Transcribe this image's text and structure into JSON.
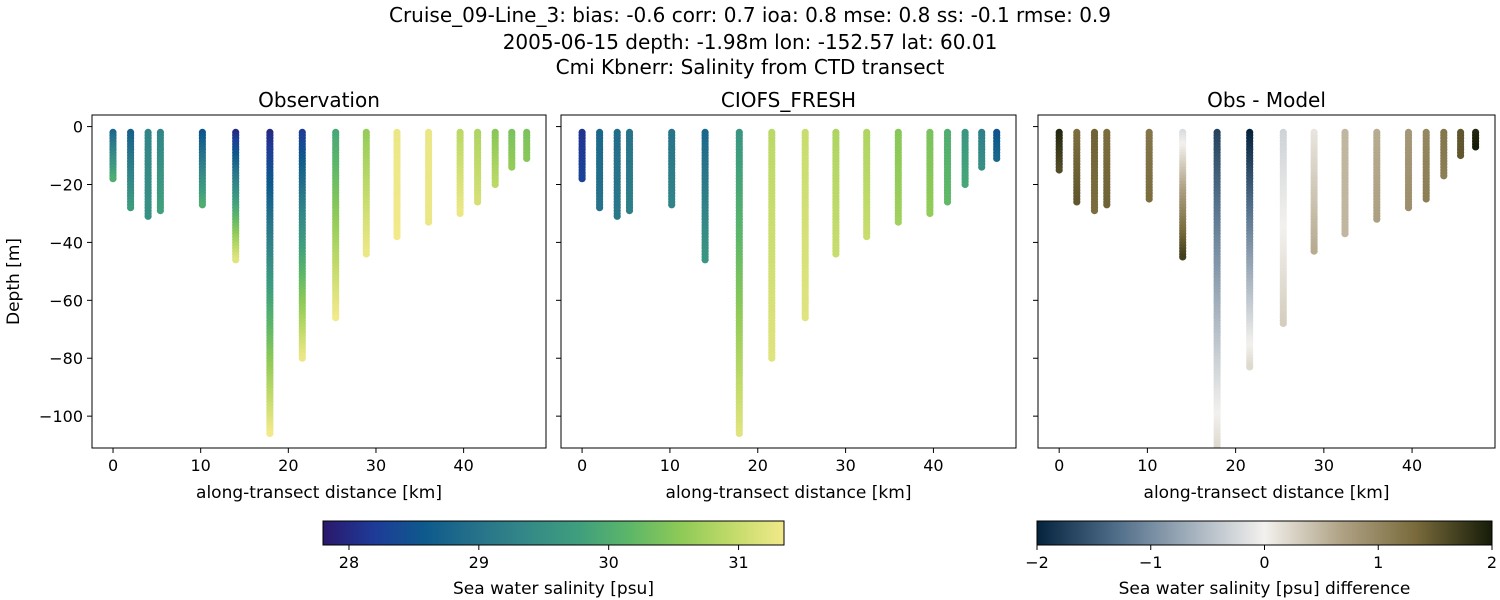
{
  "figure": {
    "title_lines": [
      "Cruise_09-Line_3: bias: -0.6  corr: 0.7  ioa: 0.8  mse: 0.8  ss: -0.1  rmse: 0.9",
      "2005-06-15 depth: -1.98m lon: -152.57 lat: 60.01",
      "Cmi Kbnerr: Salinity from CTD transect"
    ]
  },
  "chart_data": [
    {
      "type": "scatter",
      "title": "Observation",
      "xlabel": "along-transect distance [km]",
      "ylabel": "Depth [m]",
      "xlim": [
        -2.4,
        49.4
      ],
      "ylim": [
        -111,
        4
      ],
      "xticks": [
        0,
        10,
        20,
        30,
        40
      ],
      "yticks": [
        0,
        -20,
        -40,
        -60,
        -80,
        -100
      ],
      "colormap": "haline",
      "clim": [
        27.8,
        31.35
      ],
      "profiles": [
        {
          "x": 0.0,
          "bottom": -18,
          "top_value": 28.8,
          "bottom_value": 30.0
        },
        {
          "x": 2.0,
          "bottom": -28,
          "top_value": 28.7,
          "bottom_value": 29.7
        },
        {
          "x": 4.0,
          "bottom": -31,
          "top_value": 29.3,
          "bottom_value": 29.5
        },
        {
          "x": 5.4,
          "bottom": -29,
          "top_value": 29.3,
          "bottom_value": 29.8
        },
        {
          "x": 10.2,
          "bottom": -27,
          "top_value": 28.5,
          "bottom_value": 30.0
        },
        {
          "x": 14.0,
          "bottom": -46,
          "top_value": 28.0,
          "bottom_value": 31.2
        },
        {
          "x": 17.9,
          "bottom": -106,
          "top_value": 28.0,
          "bottom_value": 31.35
        },
        {
          "x": 21.6,
          "bottom": -80,
          "top_value": 28.2,
          "bottom_value": 31.3
        },
        {
          "x": 25.4,
          "bottom": -66,
          "top_value": 29.9,
          "bottom_value": 31.35
        },
        {
          "x": 28.9,
          "bottom": -44,
          "top_value": 30.6,
          "bottom_value": 31.3
        },
        {
          "x": 32.4,
          "bottom": -38,
          "top_value": 31.3,
          "bottom_value": 31.35
        },
        {
          "x": 36.0,
          "bottom": -33,
          "top_value": 31.3,
          "bottom_value": 31.3
        },
        {
          "x": 39.6,
          "bottom": -30,
          "top_value": 30.9,
          "bottom_value": 31.3
        },
        {
          "x": 41.6,
          "bottom": -26,
          "top_value": 30.8,
          "bottom_value": 31.1
        },
        {
          "x": 43.6,
          "bottom": -20,
          "top_value": 30.5,
          "bottom_value": 30.9
        },
        {
          "x": 45.5,
          "bottom": -14,
          "top_value": 30.4,
          "bottom_value": 30.6
        },
        {
          "x": 47.2,
          "bottom": -11,
          "top_value": 30.4,
          "bottom_value": 30.5
        }
      ]
    },
    {
      "type": "scatter",
      "title": "CIOFS_FRESH",
      "xlabel": "along-transect distance [km]",
      "xlim": [
        -2.4,
        49.4
      ],
      "ylim": [
        -111,
        4
      ],
      "xticks": [
        0,
        10,
        20,
        30,
        40
      ],
      "yticks": [
        0,
        -20,
        -40,
        -60,
        -80,
        -100
      ],
      "colormap": "haline",
      "clim": [
        27.8,
        31.35
      ],
      "profiles": [
        {
          "x": 0.0,
          "bottom": -18,
          "top_value": 28.1,
          "bottom_value": 28.3
        },
        {
          "x": 2.0,
          "bottom": -28,
          "top_value": 28.8,
          "bottom_value": 29.0
        },
        {
          "x": 4.0,
          "bottom": -31,
          "top_value": 28.9,
          "bottom_value": 29.1
        },
        {
          "x": 5.4,
          "bottom": -29,
          "top_value": 29.0,
          "bottom_value": 29.2
        },
        {
          "x": 10.2,
          "bottom": -27,
          "top_value": 29.0,
          "bottom_value": 29.3
        },
        {
          "x": 14.0,
          "bottom": -46,
          "top_value": 28.8,
          "bottom_value": 29.6
        },
        {
          "x": 17.9,
          "bottom": -106,
          "top_value": 29.6,
          "bottom_value": 31.2
        },
        {
          "x": 21.6,
          "bottom": -80,
          "top_value": 30.9,
          "bottom_value": 31.2
        },
        {
          "x": 25.4,
          "bottom": -66,
          "top_value": 31.0,
          "bottom_value": 31.2
        },
        {
          "x": 28.9,
          "bottom": -44,
          "top_value": 30.8,
          "bottom_value": 31.0
        },
        {
          "x": 32.4,
          "bottom": -38,
          "top_value": 30.8,
          "bottom_value": 31.0
        },
        {
          "x": 36.0,
          "bottom": -33,
          "top_value": 30.5,
          "bottom_value": 30.7
        },
        {
          "x": 39.6,
          "bottom": -30,
          "top_value": 30.4,
          "bottom_value": 30.6
        },
        {
          "x": 41.6,
          "bottom": -26,
          "top_value": 30.0,
          "bottom_value": 30.2
        },
        {
          "x": 43.6,
          "bottom": -20,
          "top_value": 29.6,
          "bottom_value": 29.9
        },
        {
          "x": 45.5,
          "bottom": -14,
          "top_value": 29.2,
          "bottom_value": 29.5
        },
        {
          "x": 47.2,
          "bottom": -11,
          "top_value": 28.5,
          "bottom_value": 28.8
        }
      ]
    },
    {
      "type": "scatter",
      "title": "Obs - Model",
      "xlabel": "along-transect distance [km]",
      "xlim": [
        -2.4,
        49.4
      ],
      "ylim": [
        -111,
        4
      ],
      "xticks": [
        0,
        10,
        20,
        30,
        40
      ],
      "yticks": [
        0,
        -20,
        -40,
        -60,
        -80,
        -100
      ],
      "colormap": "diff",
      "clim": [
        -2,
        2
      ],
      "profiles": [
        {
          "x": 0.0,
          "bottom": -15,
          "top_value": 1.9,
          "bottom_value": 1.6
        },
        {
          "x": 2.0,
          "bottom": -26,
          "top_value": 1.3,
          "bottom_value": 1.5
        },
        {
          "x": 4.0,
          "bottom": -29,
          "top_value": 1.4,
          "bottom_value": 1.3
        },
        {
          "x": 5.4,
          "bottom": -27,
          "top_value": 1.3,
          "bottom_value": 1.4
        },
        {
          "x": 10.2,
          "bottom": -25,
          "top_value": 1.2,
          "bottom_value": 1.3
        },
        {
          "x": 14.0,
          "bottom": -45,
          "top_value": -0.2,
          "bottom_value": 1.7
        },
        {
          "x": 17.9,
          "bottom": -111,
          "top_value": -1.7,
          "bottom_value": 0.2
        },
        {
          "x": 21.6,
          "bottom": -83,
          "top_value": -2.0,
          "bottom_value": 0.2
        },
        {
          "x": 25.4,
          "bottom": -68,
          "top_value": -0.3,
          "bottom_value": 0.3
        },
        {
          "x": 28.9,
          "bottom": -43,
          "top_value": 0.1,
          "bottom_value": 0.6
        },
        {
          "x": 32.4,
          "bottom": -37,
          "top_value": 0.5,
          "bottom_value": 0.5
        },
        {
          "x": 36.0,
          "bottom": -32,
          "top_value": 0.6,
          "bottom_value": 0.7
        },
        {
          "x": 39.6,
          "bottom": -28,
          "top_value": 0.8,
          "bottom_value": 0.9
        },
        {
          "x": 41.6,
          "bottom": -25,
          "top_value": 1.0,
          "bottom_value": 1.1
        },
        {
          "x": 43.6,
          "bottom": -17,
          "top_value": 1.2,
          "bottom_value": 1.1
        },
        {
          "x": 45.5,
          "bottom": -10,
          "top_value": 1.5,
          "bottom_value": 1.5
        },
        {
          "x": 47.2,
          "bottom": -7,
          "top_value": 1.9,
          "bottom_value": 2.0
        }
      ]
    }
  ],
  "colorbars": [
    {
      "label": "Sea water salinity [psu]",
      "colormap": "haline",
      "clim": [
        27.8,
        31.35
      ],
      "ticks": [
        28,
        29,
        30,
        31
      ],
      "tick_labels": [
        "28",
        "29",
        "30",
        "31"
      ]
    },
    {
      "label": "Sea water salinity [psu] difference",
      "colormap": "diff",
      "clim": [
        -2,
        2
      ],
      "ticks": [
        -2,
        -1,
        0,
        1,
        2
      ],
      "tick_labels": [
        "−2",
        "−1",
        "0",
        "1",
        "2"
      ]
    }
  ],
  "colormaps": {
    "haline": [
      "#2a186c",
      "#1e3b98",
      "#0e5a8c",
      "#26728a",
      "#348987",
      "#3f9f7d",
      "#5db768",
      "#8fca57",
      "#c2db6a",
      "#f2e98a"
    ],
    "diff": [
      "#06233e",
      "#4c6a86",
      "#a0aebb",
      "#f3f1ee",
      "#b0a386",
      "#796a3b",
      "#151c08"
    ]
  },
  "colors": {
    "axes": "#000000",
    "background": "#ffffff"
  }
}
